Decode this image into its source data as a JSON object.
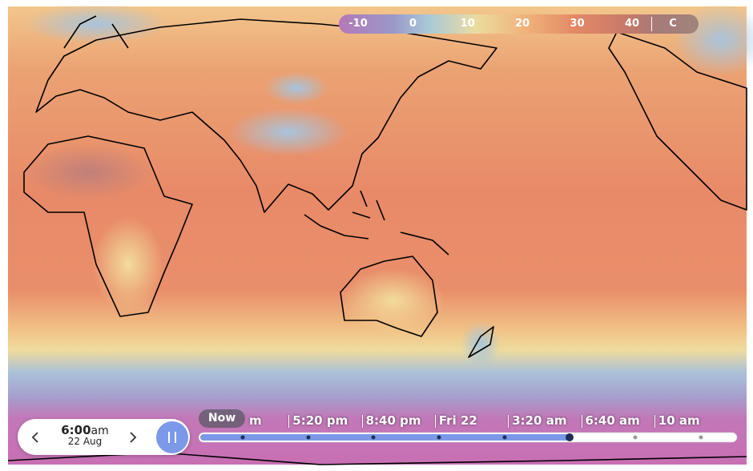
{
  "legend": {
    "labels": [
      "-10",
      "0",
      "10",
      "20",
      "30",
      "40"
    ],
    "unit": "C"
  },
  "time_control": {
    "time": "6:00",
    "period": "am",
    "date": "22 Aug"
  },
  "timeline": {
    "now": "Now",
    "labels": [
      "m",
      "5:20 pm",
      "8:40 pm",
      "Fri 22",
      "3:20 am",
      "6:40 am",
      "10 am"
    ]
  }
}
